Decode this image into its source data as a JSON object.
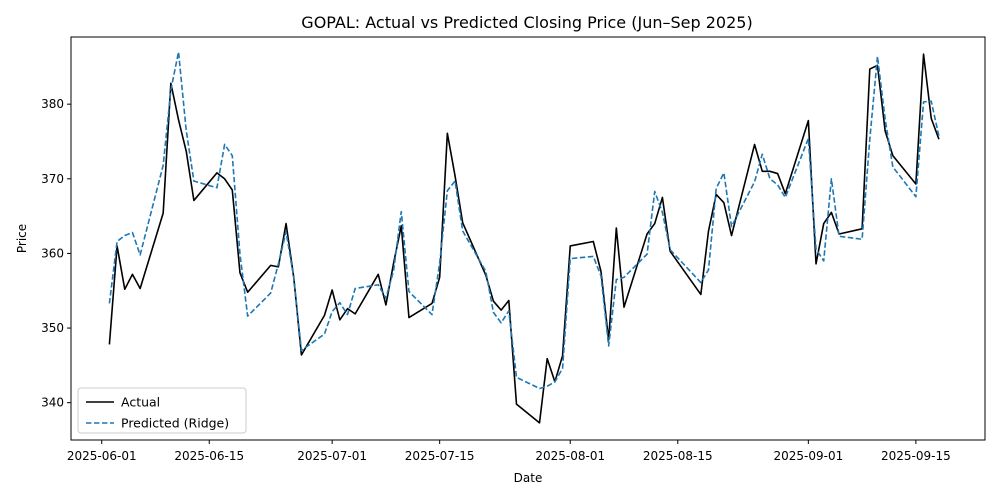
{
  "chart_data": {
    "type": "line",
    "title": "GOPAL: Actual vs Predicted Closing Price (Jun–Sep 2025)",
    "xlabel": "Date",
    "ylabel": "Price",
    "xlim": [
      "2025-05-28",
      "2025-09-24"
    ],
    "ylim": [
      335,
      389
    ],
    "x_ticks": [
      "2025-06-01",
      "2025-06-15",
      "2025-07-01",
      "2025-07-15",
      "2025-08-01",
      "2025-08-15",
      "2025-09-01",
      "2025-09-15"
    ],
    "y_ticks": [
      340,
      350,
      360,
      370,
      380
    ],
    "grid": false,
    "legend": "lower-left",
    "series": [
      {
        "name": "Actual",
        "color": "#000000",
        "style": "solid",
        "points": [
          [
            "2025-06-02",
            347.8
          ],
          [
            "2025-06-03",
            361.0
          ],
          [
            "2025-06-04",
            355.2
          ],
          [
            "2025-06-05",
            357.2
          ],
          [
            "2025-06-06",
            355.3
          ],
          [
            "2025-06-09",
            365.4
          ],
          [
            "2025-06-10",
            382.8
          ],
          [
            "2025-06-11",
            377.9
          ],
          [
            "2025-06-12",
            373.7
          ],
          [
            "2025-06-13",
            367.1
          ],
          [
            "2025-06-16",
            370.8
          ],
          [
            "2025-06-17",
            370.0
          ],
          [
            "2025-06-18",
            368.5
          ],
          [
            "2025-06-19",
            357.4
          ],
          [
            "2025-06-20",
            354.8
          ],
          [
            "2025-06-23",
            358.4
          ],
          [
            "2025-06-24",
            358.2
          ],
          [
            "2025-06-25",
            364.0
          ],
          [
            "2025-06-26",
            356.8
          ],
          [
            "2025-06-27",
            346.4
          ],
          [
            "2025-06-30",
            351.7
          ],
          [
            "2025-07-01",
            355.1
          ],
          [
            "2025-07-02",
            351.1
          ],
          [
            "2025-07-03",
            352.6
          ],
          [
            "2025-07-04",
            351.9
          ],
          [
            "2025-07-07",
            357.2
          ],
          [
            "2025-07-08",
            353.1
          ],
          [
            "2025-07-09",
            358.7
          ],
          [
            "2025-07-10",
            363.7
          ],
          [
            "2025-07-11",
            351.4
          ],
          [
            "2025-07-14",
            353.3
          ],
          [
            "2025-07-15",
            356.8
          ],
          [
            "2025-07-16",
            376.1
          ],
          [
            "2025-07-17",
            370.4
          ],
          [
            "2025-07-18",
            364.1
          ],
          [
            "2025-07-21",
            357.1
          ],
          [
            "2025-07-22",
            353.6
          ],
          [
            "2025-07-23",
            352.4
          ],
          [
            "2025-07-24",
            353.7
          ],
          [
            "2025-07-25",
            339.8
          ],
          [
            "2025-07-28",
            337.3
          ],
          [
            "2025-07-29",
            345.9
          ],
          [
            "2025-07-30",
            342.8
          ],
          [
            "2025-07-31",
            346.3
          ],
          [
            "2025-08-01",
            361.0
          ],
          [
            "2025-08-04",
            361.6
          ],
          [
            "2025-08-05",
            357.6
          ],
          [
            "2025-08-06",
            348.4
          ],
          [
            "2025-08-07",
            363.4
          ],
          [
            "2025-08-08",
            352.8
          ],
          [
            "2025-08-11",
            362.6
          ],
          [
            "2025-08-12",
            364.0
          ],
          [
            "2025-08-13",
            367.5
          ],
          [
            "2025-08-14",
            360.3
          ],
          [
            "2025-08-18",
            354.5
          ],
          [
            "2025-08-19",
            363.0
          ],
          [
            "2025-08-20",
            367.9
          ],
          [
            "2025-08-21",
            366.8
          ],
          [
            "2025-08-22",
            362.4
          ],
          [
            "2025-08-25",
            374.6
          ],
          [
            "2025-08-26",
            371.0
          ],
          [
            "2025-08-27",
            371.0
          ],
          [
            "2025-08-28",
            370.7
          ],
          [
            "2025-08-29",
            368.0
          ],
          [
            "2025-09-01",
            377.8
          ],
          [
            "2025-09-02",
            358.6
          ],
          [
            "2025-09-03",
            364.0
          ],
          [
            "2025-09-04",
            365.5
          ],
          [
            "2025-09-05",
            362.6
          ],
          [
            "2025-09-08",
            363.3
          ],
          [
            "2025-09-09",
            384.7
          ],
          [
            "2025-09-10",
            385.2
          ],
          [
            "2025-09-11",
            376.4
          ],
          [
            "2025-09-12",
            373.1
          ],
          [
            "2025-09-15",
            369.3
          ],
          [
            "2025-09-16",
            386.7
          ],
          [
            "2025-09-17",
            378.1
          ],
          [
            "2025-09-18",
            375.3
          ]
        ]
      },
      {
        "name": "Predicted (Ridge)",
        "color": "#1f77b4",
        "style": "dashed",
        "points": [
          [
            "2025-06-02",
            353.3
          ],
          [
            "2025-06-03",
            361.6
          ],
          [
            "2025-06-04",
            362.4
          ],
          [
            "2025-06-05",
            362.8
          ],
          [
            "2025-06-06",
            359.8
          ],
          [
            "2025-06-09",
            371.8
          ],
          [
            "2025-06-10",
            381.9
          ],
          [
            "2025-06-11",
            387.0
          ],
          [
            "2025-06-12",
            376.5
          ],
          [
            "2025-06-13",
            369.7
          ],
          [
            "2025-06-16",
            368.8
          ],
          [
            "2025-06-17",
            374.6
          ],
          [
            "2025-06-18",
            373.1
          ],
          [
            "2025-06-19",
            359.9
          ],
          [
            "2025-06-20",
            351.6
          ],
          [
            "2025-06-23",
            354.7
          ],
          [
            "2025-06-24",
            358.6
          ],
          [
            "2025-06-25",
            362.9
          ],
          [
            "2025-06-26",
            356.8
          ],
          [
            "2025-06-27",
            347.0
          ],
          [
            "2025-06-30",
            349.2
          ],
          [
            "2025-07-01",
            352.2
          ],
          [
            "2025-07-02",
            353.4
          ],
          [
            "2025-07-03",
            351.8
          ],
          [
            "2025-07-04",
            355.3
          ],
          [
            "2025-07-07",
            355.8
          ],
          [
            "2025-07-08",
            354.0
          ],
          [
            "2025-07-09",
            357.7
          ],
          [
            "2025-07-10",
            365.6
          ],
          [
            "2025-07-11",
            354.9
          ],
          [
            "2025-07-14",
            351.8
          ],
          [
            "2025-07-15",
            358.7
          ],
          [
            "2025-07-16",
            368.4
          ],
          [
            "2025-07-17",
            369.7
          ],
          [
            "2025-07-18",
            363.0
          ],
          [
            "2025-07-21",
            357.6
          ],
          [
            "2025-07-22",
            352.1
          ],
          [
            "2025-07-23",
            350.7
          ],
          [
            "2025-07-24",
            352.3
          ],
          [
            "2025-07-25",
            343.4
          ],
          [
            "2025-07-28",
            341.9
          ],
          [
            "2025-07-29",
            342.2
          ],
          [
            "2025-07-30",
            342.8
          ],
          [
            "2025-07-31",
            344.6
          ],
          [
            "2025-08-01",
            359.3
          ],
          [
            "2025-08-04",
            359.6
          ],
          [
            "2025-08-05",
            357.0
          ],
          [
            "2025-08-06",
            347.6
          ],
          [
            "2025-08-07",
            356.5
          ],
          [
            "2025-08-08",
            356.8
          ],
          [
            "2025-08-11",
            359.9
          ],
          [
            "2025-08-12",
            368.3
          ],
          [
            "2025-08-13",
            365.5
          ],
          [
            "2025-08-14",
            360.5
          ],
          [
            "2025-08-18",
            356.1
          ],
          [
            "2025-08-19",
            357.8
          ],
          [
            "2025-08-20",
            368.7
          ],
          [
            "2025-08-21",
            370.8
          ],
          [
            "2025-08-22",
            363.6
          ],
          [
            "2025-08-25",
            369.6
          ],
          [
            "2025-08-26",
            373.3
          ],
          [
            "2025-08-27",
            370.0
          ],
          [
            "2025-08-28",
            369.2
          ],
          [
            "2025-08-29",
            367.5
          ],
          [
            "2025-09-01",
            375.4
          ],
          [
            "2025-09-02",
            360.6
          ],
          [
            "2025-09-03",
            359.0
          ],
          [
            "2025-09-04",
            370.0
          ],
          [
            "2025-09-05",
            362.3
          ],
          [
            "2025-09-08",
            361.9
          ],
          [
            "2025-09-09",
            375.3
          ],
          [
            "2025-09-10",
            386.4
          ],
          [
            "2025-09-11",
            378.0
          ],
          [
            "2025-09-12",
            371.6
          ],
          [
            "2025-09-15",
            367.6
          ],
          [
            "2025-09-16",
            380.3
          ],
          [
            "2025-09-17",
            380.4
          ],
          [
            "2025-09-18",
            375.7
          ]
        ]
      }
    ]
  }
}
